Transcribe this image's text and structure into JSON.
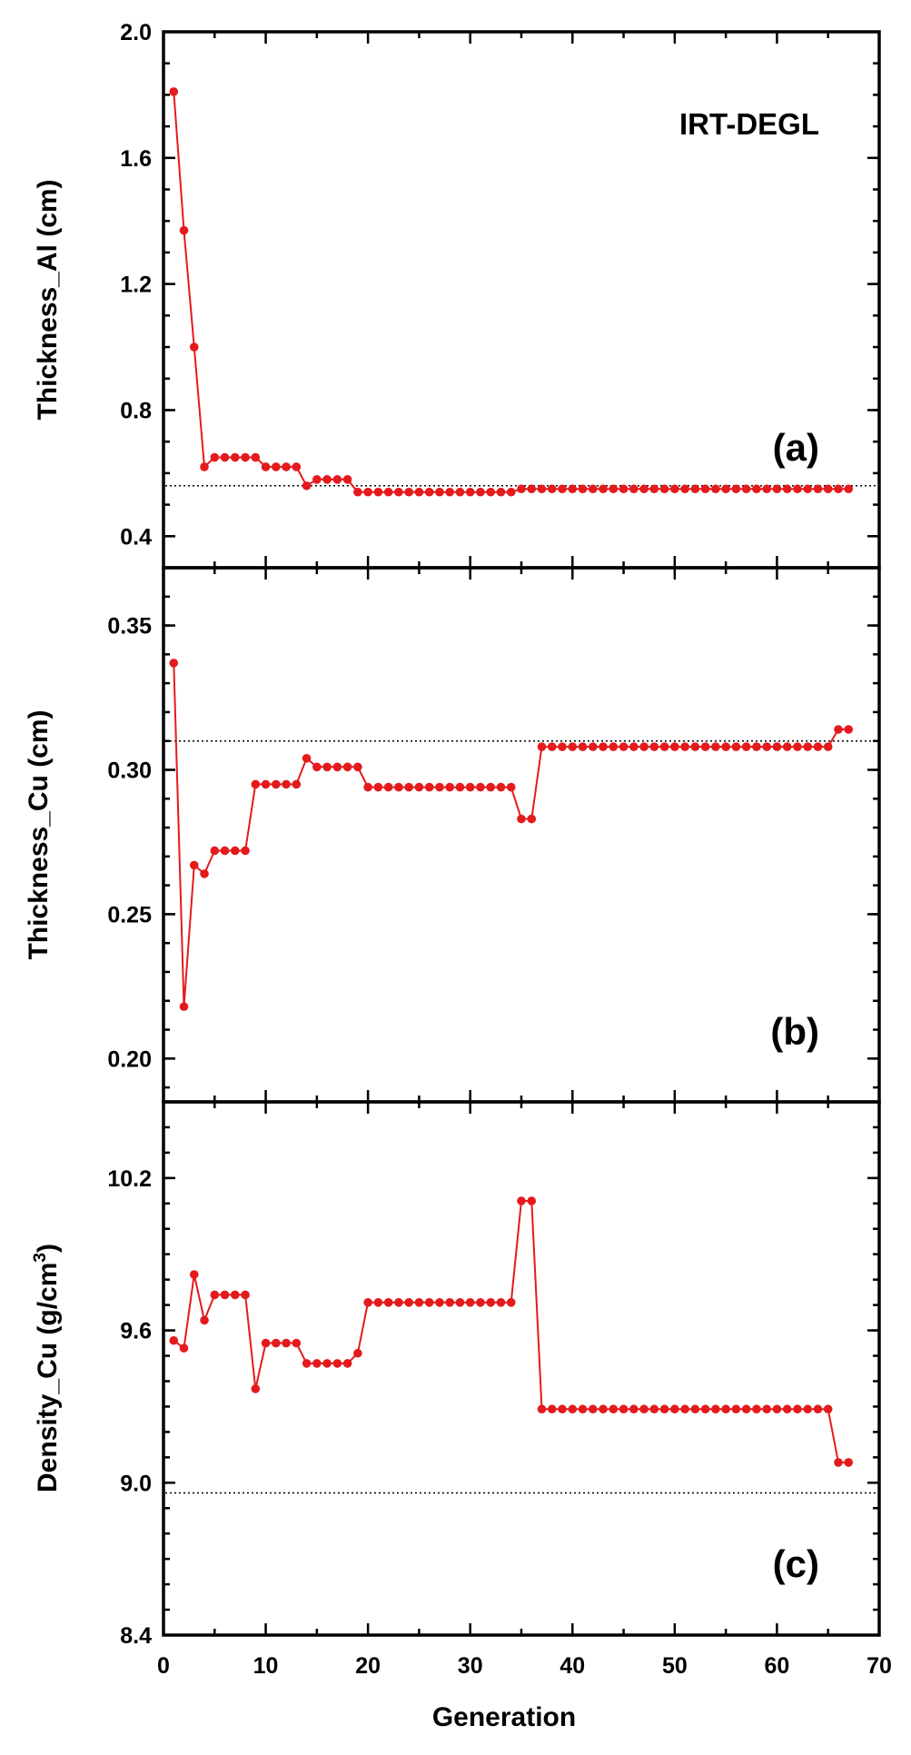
{
  "chart_data": {
    "type": "line",
    "title": "IRT-DEGL",
    "xlabel": "Generation",
    "xlim": [
      0,
      70
    ],
    "x_ticks": [
      "0",
      "10",
      "20",
      "30",
      "40",
      "50",
      "60",
      "70"
    ],
    "series_color": "#e41a1c",
    "reference_color": "#000000",
    "grid": false,
    "panels": [
      {
        "tag": "(a)",
        "ylabel": "Thickness_Al (cm)",
        "ylim": [
          0.3,
          2.0
        ],
        "y_ticks": [
          "0.4",
          "0.8",
          "1.2",
          "1.6",
          "2.0"
        ],
        "reference_line": 0.56,
        "x": [
          1,
          2,
          3,
          4,
          5,
          6,
          7,
          8,
          9,
          10,
          11,
          12,
          13,
          14,
          15,
          16,
          17,
          18,
          19,
          20,
          21,
          22,
          23,
          24,
          25,
          26,
          27,
          28,
          29,
          30,
          31,
          32,
          33,
          34,
          35,
          36,
          37,
          38,
          39,
          40,
          41,
          42,
          43,
          44,
          45,
          46,
          47,
          48,
          49,
          50,
          51,
          52,
          53,
          54,
          55,
          56,
          57,
          58,
          59,
          60,
          61,
          62,
          63,
          64,
          65,
          66,
          67
        ],
        "values": [
          1.81,
          1.37,
          1.0,
          0.62,
          0.65,
          0.65,
          0.65,
          0.65,
          0.65,
          0.62,
          0.62,
          0.62,
          0.62,
          0.56,
          0.58,
          0.58,
          0.58,
          0.58,
          0.54,
          0.54,
          0.54,
          0.54,
          0.54,
          0.54,
          0.54,
          0.54,
          0.54,
          0.54,
          0.54,
          0.54,
          0.54,
          0.54,
          0.54,
          0.54,
          0.55,
          0.55,
          0.55,
          0.55,
          0.55,
          0.55,
          0.55,
          0.55,
          0.55,
          0.55,
          0.55,
          0.55,
          0.55,
          0.55,
          0.55,
          0.55,
          0.55,
          0.55,
          0.55,
          0.55,
          0.55,
          0.55,
          0.55,
          0.55,
          0.55,
          0.55,
          0.55,
          0.55,
          0.55,
          0.55,
          0.55,
          0.55,
          0.55
        ]
      },
      {
        "tag": "(b)",
        "ylabel": "Thickness_Cu (cm)",
        "ylim": [
          0.185,
          0.37
        ],
        "y_ticks": [
          "0.20",
          "0.25",
          "0.30",
          "0.35"
        ],
        "reference_line": 0.31,
        "x": [
          1,
          2,
          3,
          4,
          5,
          6,
          7,
          8,
          9,
          10,
          11,
          12,
          13,
          14,
          15,
          16,
          17,
          18,
          19,
          20,
          21,
          22,
          23,
          24,
          25,
          26,
          27,
          28,
          29,
          30,
          31,
          32,
          33,
          34,
          35,
          36,
          37,
          38,
          39,
          40,
          41,
          42,
          43,
          44,
          45,
          46,
          47,
          48,
          49,
          50,
          51,
          52,
          53,
          54,
          55,
          56,
          57,
          58,
          59,
          60,
          61,
          62,
          63,
          64,
          65,
          66,
          67
        ],
        "values": [
          0.337,
          0.218,
          0.267,
          0.264,
          0.272,
          0.272,
          0.272,
          0.272,
          0.295,
          0.295,
          0.295,
          0.295,
          0.295,
          0.304,
          0.301,
          0.301,
          0.301,
          0.301,
          0.301,
          0.294,
          0.294,
          0.294,
          0.294,
          0.294,
          0.294,
          0.294,
          0.294,
          0.294,
          0.294,
          0.294,
          0.294,
          0.294,
          0.294,
          0.294,
          0.283,
          0.283,
          0.308,
          0.308,
          0.308,
          0.308,
          0.308,
          0.308,
          0.308,
          0.308,
          0.308,
          0.308,
          0.308,
          0.308,
          0.308,
          0.308,
          0.308,
          0.308,
          0.308,
          0.308,
          0.308,
          0.308,
          0.308,
          0.308,
          0.308,
          0.308,
          0.308,
          0.308,
          0.308,
          0.308,
          0.308,
          0.314,
          0.314
        ]
      },
      {
        "tag": "(c)",
        "ylabel": "Density_Cu (g/cm",
        "ylabel_sup": "3",
        "ylabel_end": ")",
        "ylim": [
          8.4,
          10.5
        ],
        "y_ticks": [
          "8.4",
          "9.0",
          "9.6",
          "10.2"
        ],
        "reference_line": 8.96,
        "x": [
          1,
          2,
          3,
          4,
          5,
          6,
          7,
          8,
          9,
          10,
          11,
          12,
          13,
          14,
          15,
          16,
          17,
          18,
          19,
          20,
          21,
          22,
          23,
          24,
          25,
          26,
          27,
          28,
          29,
          30,
          31,
          32,
          33,
          34,
          35,
          36,
          37,
          38,
          39,
          40,
          41,
          42,
          43,
          44,
          45,
          46,
          47,
          48,
          49,
          50,
          51,
          52,
          53,
          54,
          55,
          56,
          57,
          58,
          59,
          60,
          61,
          62,
          63,
          64,
          65,
          66,
          67
        ],
        "values": [
          9.56,
          9.53,
          9.82,
          9.64,
          9.74,
          9.74,
          9.74,
          9.74,
          9.37,
          9.55,
          9.55,
          9.55,
          9.55,
          9.47,
          9.47,
          9.47,
          9.47,
          9.47,
          9.51,
          9.71,
          9.71,
          9.71,
          9.71,
          9.71,
          9.71,
          9.71,
          9.71,
          9.71,
          9.71,
          9.71,
          9.71,
          9.71,
          9.71,
          9.71,
          10.11,
          10.11,
          9.29,
          9.29,
          9.29,
          9.29,
          9.29,
          9.29,
          9.29,
          9.29,
          9.29,
          9.29,
          9.29,
          9.29,
          9.29,
          9.29,
          9.29,
          9.29,
          9.29,
          9.29,
          9.29,
          9.29,
          9.29,
          9.29,
          9.29,
          9.29,
          9.29,
          9.29,
          9.29,
          9.29,
          9.29,
          9.08,
          9.08
        ]
      }
    ]
  }
}
